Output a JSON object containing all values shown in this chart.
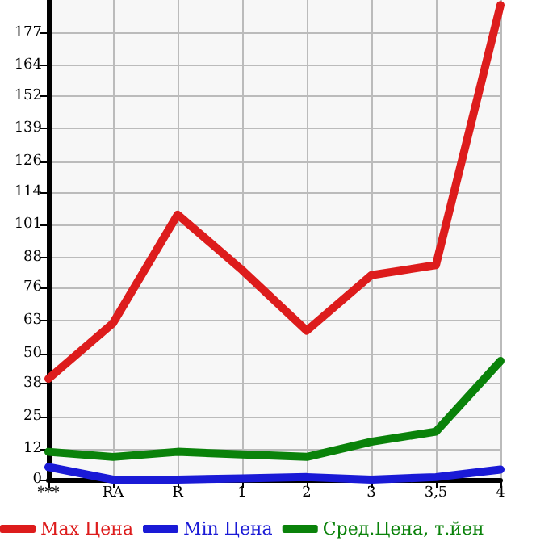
{
  "chart_data": {
    "type": "line",
    "categories": [
      "***",
      "RA",
      "R",
      "1",
      "2",
      "3",
      "3,5",
      "4"
    ],
    "series": [
      {
        "name": "Max Цена",
        "color": "#dd1c1c",
        "values": [
          40,
          62,
          105,
          83,
          59,
          81,
          85,
          188
        ]
      },
      {
        "name": "Min Цена",
        "color": "#1a1ad6",
        "values": [
          5,
          0,
          0,
          0.5,
          1,
          0,
          1,
          4
        ]
      },
      {
        "name": "Сред.Цена, т.йен",
        "color": "#0a820a",
        "values": [
          11,
          9,
          11,
          10,
          9,
          15,
          19,
          47
        ]
      }
    ],
    "ylim": [
      0,
      190
    ],
    "yticks": [
      0,
      12,
      25,
      38,
      50,
      63,
      76,
      88,
      101,
      114,
      126,
      139,
      152,
      164,
      177
    ],
    "grid": true,
    "legend": "bottom",
    "marker": "none",
    "line_style": "solid"
  }
}
